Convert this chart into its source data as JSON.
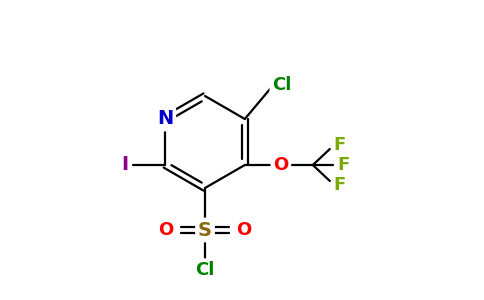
{
  "bg_color": "#ffffff",
  "bond_color": "#000000",
  "atom_colors": {
    "N": "#0000cc",
    "Cl": "#008000",
    "F": "#7aaa00",
    "O": "#ff0000",
    "S": "#8b6914",
    "I": "#8b008b",
    "C": "#000000"
  },
  "figsize": [
    4.84,
    3.0
  ],
  "dpi": 100,
  "lw": 1.6,
  "fs": 13
}
